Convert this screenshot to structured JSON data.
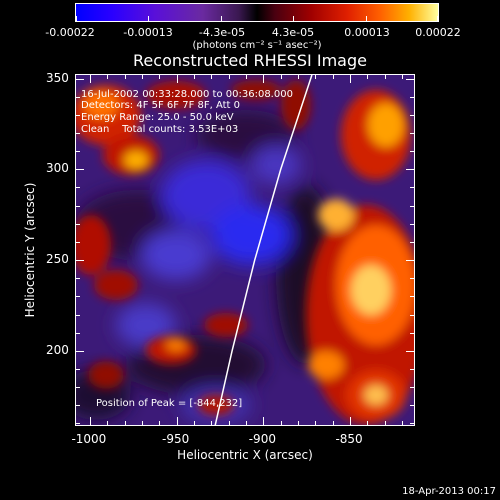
{
  "colorbar": {
    "tick_labels": [
      "-0.00022",
      "-0.00013",
      "-4.3e-05",
      "4.3e-05",
      "0.00013",
      "0.00022"
    ],
    "units": "(photons cm⁻² s⁻¹ asec⁻²)",
    "colors": [
      "#0000ff",
      "#6a2aa0",
      "#000000",
      "#a00000",
      "#ff6000",
      "#ffffa0"
    ]
  },
  "title": "Reconstructed RHESSI Image",
  "info": {
    "time_range": "16-Jul-2002 00:33:28.000 to 00:36:08.000",
    "detectors": "Detectors: 4F 5F 6F 7F 8F, Att 0",
    "energy": "Energy Range: 25.0 - 50.0 keV",
    "clean": "Clean    Total counts: 3.53E+03",
    "peak": "Position of Peak = [-844,232]"
  },
  "chart_data": {
    "type": "heatmap",
    "title": "Reconstructed RHESSI Image",
    "xlabel": "Heliocentric X (arcsec)",
    "ylabel": "Heliocentric Y (arcsec)",
    "xlim": [
      -1008,
      -812
    ],
    "ylim": [
      158,
      352
    ],
    "x_ticks": [
      -1000,
      -950,
      -900,
      -850
    ],
    "y_ticks": [
      200,
      250,
      300,
      350
    ],
    "peak_position": [
      -844,
      232
    ],
    "colorbar_range": [
      -0.00022,
      0.00022
    ],
    "limb_curve": [
      [
        -928,
        158
      ],
      [
        -918,
        200
      ],
      [
        -905,
        250
      ],
      [
        -890,
        300
      ],
      [
        -872,
        352
      ]
    ]
  },
  "axes": {
    "x_tick_labels": [
      "-1000",
      "-950",
      "-900",
      "-850"
    ],
    "y_tick_labels": [
      "350",
      "300",
      "250",
      "200"
    ],
    "x_title": "Heliocentric X (arcsec)",
    "y_title": "Heliocentric Y (arcsec)"
  },
  "timestamp": "18-Apr-2013 00:17"
}
